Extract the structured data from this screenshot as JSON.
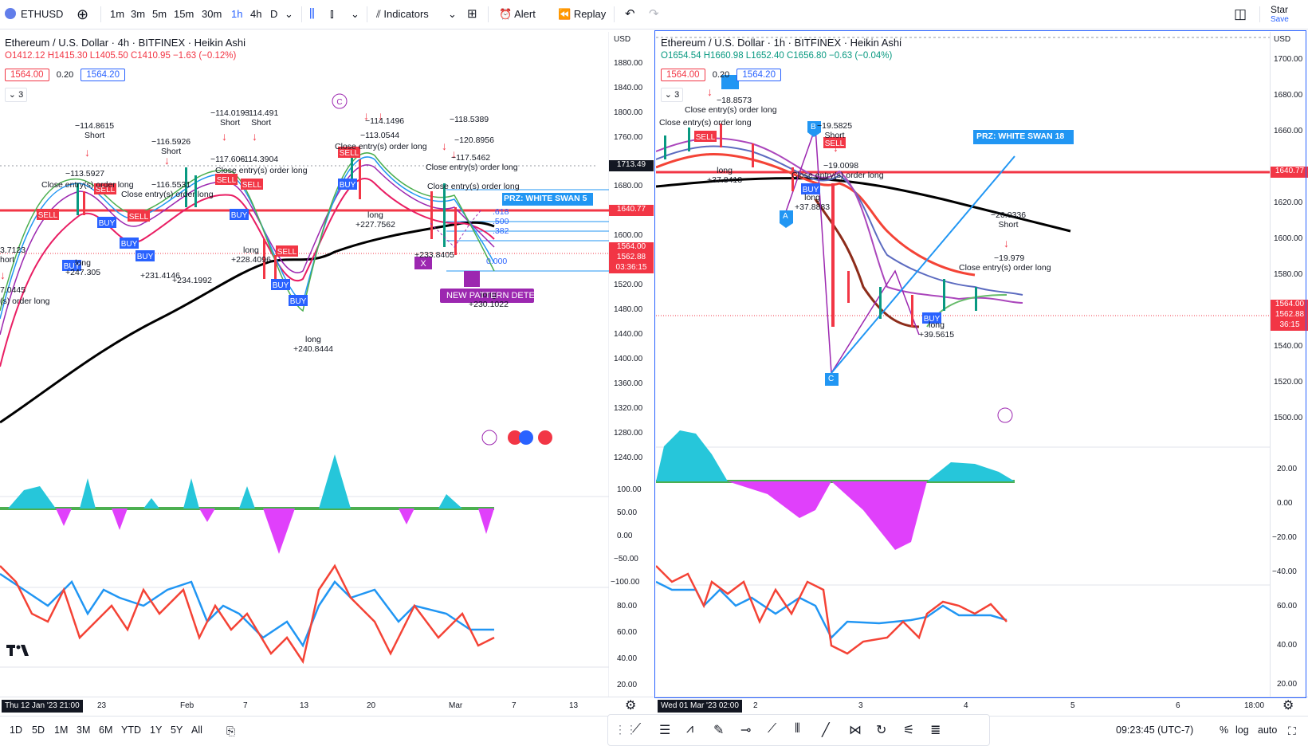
{
  "toolbar": {
    "symbol": "ETHUSD",
    "intervals": [
      "1m",
      "3m",
      "5m",
      "15m",
      "30m",
      "1h",
      "4h",
      "D"
    ],
    "active_interval": "1h",
    "indicators_label": "Indicators",
    "alert_label": "Alert",
    "replay_label": "Replay",
    "star_label": "Star",
    "save_label": "Save"
  },
  "left_chart": {
    "title": "Ethereum / U.S. Dollar · 4h · BITFINEX · Heikin Ashi",
    "open": "O1412.12",
    "high": "H1415.30",
    "low": "L1405.50",
    "close": "C1410.95",
    "change": "−1.63 (−0.12%)",
    "bid": "1564.00",
    "spread": "0.20",
    "ask": "1564.20",
    "indicator_count": "3",
    "currency": "USD",
    "price_ticks": [
      "1880.00",
      "1840.00",
      "1800.00",
      "1760.00",
      "1720.00",
      "1680.00",
      "1640.00",
      "1600.00",
      "1560.00",
      "1520.00",
      "1480.00",
      "1440.00",
      "1400.00",
      "1360.00",
      "1320.00",
      "1280.00",
      "1240.00"
    ],
    "osc_ticks": [
      "100.00",
      "50.00",
      "0.00",
      "−50.00",
      "−100.00"
    ],
    "rsi_ticks": [
      "80.00",
      "60.00",
      "40.00",
      "20.00"
    ],
    "price_labels": {
      "crosshair": "1713.49",
      "red_line": "1640.77",
      "last": "1564.00",
      "last2": "1562.88",
      "countdown": "03:36:15"
    },
    "time_ticks": [
      "23",
      "Feb",
      "7",
      "13",
      "20",
      "Mar",
      "7",
      "13"
    ],
    "time_cursor": "Thu 12 Jan '23  21:00",
    "prz_label": "PRZ: WHITE SWAN 5",
    "pattern_label": "NEW PATTERN DETECTED",
    "fib_levels": [
      ".618",
      ".500",
      ".382",
      "0.000"
    ],
    "annotations": {
      "short_1": "−114.8615",
      "short_1b": "Short",
      "short_2": "−116.5926",
      "short_2b": "Short",
      "short_3": "−114.0193",
      "short_3b": "Short",
      "short_4": "−114.491",
      "short_4b": "Short",
      "close_order": "Close entry(s) order long",
      "val_1": "−113.5927",
      "val_2": "−116.5531",
      "val_3": "−117.606",
      "val_4": "−114.3904",
      "long_1": "long",
      "long_1v": "+247.305",
      "long_2": "+231.4146",
      "long_3": "+234.1992",
      "long_4": "+228.4096",
      "long_5": "+240.8444",
      "long_6": "+227.7562",
      "val_5": "−118.5389",
      "val_6": "−120.8956",
      "val_7": "−117.5462",
      "val_8": "−113.0544",
      "val_9": "−114.1496",
      "val_10": "+233.8405",
      "val_11": "+230.1022",
      "left_cut_1": "3.7123",
      "left_cut_2": "hort",
      "left_cut_3": "7.0445",
      "left_cut_4": "(s) order long"
    }
  },
  "right_chart": {
    "title": "Ethereum / U.S. Dollar · 1h · BITFINEX · Heikin Ashi",
    "open": "O1654.54",
    "high": "H1660.98",
    "low": "L1652.40",
    "close": "C1656.80",
    "change": "−0.63 (−0.04%)",
    "bid": "1564.00",
    "spread": "0.20",
    "ask": "1564.20",
    "indicator_count": "3",
    "currency": "USD",
    "price_ticks": [
      "1700.00",
      "1680.00",
      "1660.00",
      "1640.00",
      "1620.00",
      "1600.00",
      "1580.00",
      "1560.00",
      "1540.00",
      "1520.00",
      "1500.00"
    ],
    "osc_ticks": [
      "20.00",
      "0.00",
      "−20.00",
      "−40.00"
    ],
    "rsi_ticks": [
      "60.00",
      "40.00",
      "20.00"
    ],
    "price_labels": {
      "red_line": "1640.77",
      "last": "1564.00",
      "last2": "1562.88",
      "countdown": "36:15"
    },
    "time_ticks": [
      "2",
      "3",
      "4",
      "5",
      "6",
      "18:00"
    ],
    "time_cursor": "Wed 01 Mar '23  02:00",
    "prz_label": "PRZ: WHITE SWAN 18",
    "points": [
      "A",
      "B",
      "C"
    ],
    "annotations": {
      "v1": "−18.8573",
      "close_order": "Close entry(s) order long",
      "v2": "+37.8413",
      "v3": "−19.5825",
      "v3b": "Short",
      "v4": "−19.0098",
      "v5": "+37.8883",
      "v6": "−20.0336",
      "v6b": "Short",
      "v7": "−19.979",
      "v8": "+39.5615",
      "long": "long"
    }
  },
  "bottom": {
    "ranges": [
      "1D",
      "5D",
      "1M",
      "3M",
      "6M",
      "YTD",
      "1Y",
      "5Y",
      "All"
    ],
    "clock": "09:23:45 (UTC-7)",
    "percent": "%",
    "log": "log",
    "auto": "auto"
  },
  "colors": {
    "red_line": "#f23645",
    "blue": "#2962ff",
    "buy": "#2962ff",
    "sell": "#f23645",
    "prz": "#2196f3",
    "pattern": "#9c27b0",
    "ma_black": "#000000",
    "rsi_blue": "#2196f3",
    "rsi_red": "#f44336"
  }
}
